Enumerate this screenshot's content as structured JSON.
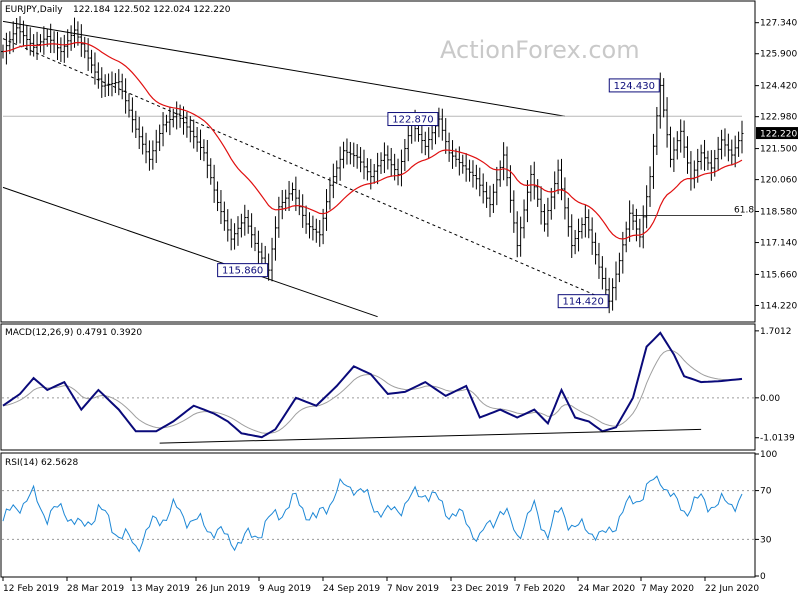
{
  "watermark": "ActionForex.com",
  "chart_data": {
    "type": "candlestick-ohlc",
    "header": {
      "symbol": "EURJPY,Daily",
      "ohlc": "122.184 122.502 122.024 122.220"
    },
    "x_ticks": [
      "12 Feb 2019",
      "28 Mar 2019",
      "13 May 2019",
      "26 Jun 2019",
      "9 Aug 2019",
      "24 Sep 2019",
      "7 Nov 2019",
      "23 Dec 2019",
      "7 Feb 2020",
      "24 Mar 2020",
      "7 May 2020",
      "22 Jun 2020"
    ],
    "main": {
      "ylim": [
        113.5,
        128.3
      ],
      "y_ticks": [
        "127.340",
        "125.900",
        "124.420",
        "122.980",
        "121.500",
        "120.060",
        "118.580",
        "117.140",
        "115.660",
        "114.220"
      ],
      "last_price": "122.220",
      "key_points": [
        {
          "date_index": 0,
          "price": 126.0
        },
        {
          "date_index": 4,
          "price": 127.1
        },
        {
          "date_index": 9,
          "price": 126.2
        },
        {
          "date_index": 13,
          "price": 126.7
        },
        {
          "date_index": 17,
          "price": 126.0
        },
        {
          "date_index": 21,
          "price": 127.0
        },
        {
          "date_index": 25,
          "price": 125.7
        },
        {
          "date_index": 29,
          "price": 124.4
        },
        {
          "date_index": 34,
          "price": 124.6
        },
        {
          "date_index": 39,
          "price": 122.4
        },
        {
          "date_index": 43,
          "price": 121.0
        },
        {
          "date_index": 47,
          "price": 122.6
        },
        {
          "date_index": 51,
          "price": 123.1
        },
        {
          "date_index": 55,
          "price": 122.3
        },
        {
          "date_index": 59,
          "price": 121.3
        },
        {
          "date_index": 63,
          "price": 119.0
        },
        {
          "date_index": 67,
          "price": 117.3
        },
        {
          "date_index": 71,
          "price": 118.3
        },
        {
          "date_index": 75,
          "price": 116.7
        },
        {
          "date_index": 78,
          "price": 115.86
        },
        {
          "date_index": 81,
          "price": 118.8
        },
        {
          "date_index": 85,
          "price": 119.6
        },
        {
          "date_index": 89,
          "price": 118.0
        },
        {
          "date_index": 93,
          "price": 117.5
        },
        {
          "date_index": 96,
          "price": 119.8
        },
        {
          "date_index": 100,
          "price": 121.4
        },
        {
          "date_index": 104,
          "price": 121.1
        },
        {
          "date_index": 108,
          "price": 120.2
        },
        {
          "date_index": 112,
          "price": 121.2
        },
        {
          "date_index": 116,
          "price": 120.3
        },
        {
          "date_index": 120,
          "price": 122.7
        },
        {
          "date_index": 124,
          "price": 121.6
        },
        {
          "date_index": 128,
          "price": 122.87
        },
        {
          "date_index": 131,
          "price": 121.3
        },
        {
          "date_index": 135,
          "price": 120.7
        },
        {
          "date_index": 139,
          "price": 120.1
        },
        {
          "date_index": 143,
          "price": 118.9
        },
        {
          "date_index": 147,
          "price": 121.2
        },
        {
          "date_index": 151,
          "price": 117.0
        },
        {
          "date_index": 155,
          "price": 120.3
        },
        {
          "date_index": 159,
          "price": 118.0
        },
        {
          "date_index": 163,
          "price": 120.5
        },
        {
          "date_index": 167,
          "price": 117.0
        },
        {
          "date_index": 171,
          "price": 118.3
        },
        {
          "date_index": 175,
          "price": 116.0
        },
        {
          "date_index": 178,
          "price": 114.42
        },
        {
          "date_index": 181,
          "price": 116.3
        },
        {
          "date_index": 184,
          "price": 118.5
        },
        {
          "date_index": 187,
          "price": 117.4
        },
        {
          "date_index": 190,
          "price": 120.2
        },
        {
          "date_index": 193,
          "price": 124.43
        },
        {
          "date_index": 196,
          "price": 121.0
        },
        {
          "date_index": 199,
          "price": 122.3
        },
        {
          "date_index": 202,
          "price": 120.1
        },
        {
          "date_index": 205,
          "price": 121.3
        },
        {
          "date_index": 208,
          "price": 120.6
        },
        {
          "date_index": 211,
          "price": 121.9
        },
        {
          "date_index": 214,
          "price": 121.2
        },
        {
          "date_index": 217,
          "price": 122.2
        }
      ],
      "lines": [
        {
          "from": [
            0,
            127.4
          ],
          "to": [
            165,
            123.0
          ],
          "style": "solid"
        },
        {
          "from": [
            0,
            119.7
          ],
          "to": [
            110,
            113.7
          ],
          "style": "solid"
        },
        {
          "from": [
            0,
            126.6
          ],
          "to": [
            178,
            114.42
          ],
          "style": "dashed"
        },
        {
          "from": [
            0,
            123.0
          ],
          "to": [
            217,
            123.0
          ],
          "style": "light"
        },
        {
          "from": [
            185,
            118.4
          ],
          "to": [
            217,
            118.4
          ],
          "style": "fib"
        }
      ],
      "callouts": [
        {
          "text": "124.430",
          "date_index": 193,
          "price": 124.43
        },
        {
          "text": "122.870",
          "date_index": 128,
          "price": 122.87
        },
        {
          "text": "115.860",
          "date_index": 78,
          "price": 115.86
        },
        {
          "text": "114.420",
          "date_index": 178,
          "price": 114.42
        }
      ],
      "fib_label": "61.8"
    },
    "macd": {
      "header": "MACD(12,26,9) 0.4791 0.3920",
      "ylim": [
        -1.3,
        1.85
      ],
      "y_ticks": [
        "1.7012",
        "0.00",
        "-1.0139"
      ],
      "last_value": "0.4791",
      "key_points": [
        {
          "date_index": 0,
          "value": -0.2
        },
        {
          "date_index": 5,
          "value": 0.1
        },
        {
          "date_index": 9,
          "value": 0.5
        },
        {
          "date_index": 13,
          "value": 0.2
        },
        {
          "date_index": 18,
          "value": 0.4
        },
        {
          "date_index": 23,
          "value": -0.3
        },
        {
          "date_index": 28,
          "value": 0.2
        },
        {
          "date_index": 34,
          "value": -0.3
        },
        {
          "date_index": 39,
          "value": -0.85
        },
        {
          "date_index": 45,
          "value": -0.85
        },
        {
          "date_index": 50,
          "value": -0.6
        },
        {
          "date_index": 56,
          "value": -0.2
        },
        {
          "date_index": 62,
          "value": -0.4
        },
        {
          "date_index": 66,
          "value": -0.6
        },
        {
          "date_index": 70,
          "value": -0.9
        },
        {
          "date_index": 76,
          "value": -1.0
        },
        {
          "date_index": 80,
          "value": -0.8
        },
        {
          "date_index": 86,
          "value": 0.0
        },
        {
          "date_index": 92,
          "value": -0.2
        },
        {
          "date_index": 98,
          "value": 0.3
        },
        {
          "date_index": 103,
          "value": 0.8
        },
        {
          "date_index": 108,
          "value": 0.6
        },
        {
          "date_index": 113,
          "value": 0.1
        },
        {
          "date_index": 118,
          "value": 0.15
        },
        {
          "date_index": 124,
          "value": 0.4
        },
        {
          "date_index": 130,
          "value": 0.05
        },
        {
          "date_index": 136,
          "value": 0.3
        },
        {
          "date_index": 140,
          "value": -0.5
        },
        {
          "date_index": 146,
          "value": -0.3
        },
        {
          "date_index": 151,
          "value": -0.5
        },
        {
          "date_index": 156,
          "value": -0.3
        },
        {
          "date_index": 160,
          "value": -0.65
        },
        {
          "date_index": 164,
          "value": 0.2
        },
        {
          "date_index": 168,
          "value": -0.5
        },
        {
          "date_index": 172,
          "value": -0.6
        },
        {
          "date_index": 176,
          "value": -0.85
        },
        {
          "date_index": 180,
          "value": -0.75
        },
        {
          "date_index": 185,
          "value": 0.0
        },
        {
          "date_index": 189,
          "value": 1.3
        },
        {
          "date_index": 193,
          "value": 1.65
        },
        {
          "date_index": 197,
          "value": 1.1
        },
        {
          "date_index": 200,
          "value": 0.55
        },
        {
          "date_index": 205,
          "value": 0.4
        },
        {
          "date_index": 210,
          "value": 0.42
        },
        {
          "date_index": 217,
          "value": 0.48
        }
      ],
      "trendline": {
        "from": [
          46,
          -1.15
        ],
        "to": [
          205,
          -0.8
        ]
      }
    },
    "rsi": {
      "header": "RSI(14) 62.5628",
      "ylim": [
        0,
        100
      ],
      "y_ticks": [
        "100",
        "70",
        "30",
        "0"
      ],
      "last_value": "62.5628",
      "key_points": [
        {
          "date_index": 0,
          "value": 45
        },
        {
          "date_index": 5,
          "value": 60
        },
        {
          "date_index": 9,
          "value": 65
        },
        {
          "date_index": 13,
          "value": 50
        },
        {
          "date_index": 18,
          "value": 55
        },
        {
          "date_index": 23,
          "value": 38
        },
        {
          "date_index": 28,
          "value": 55
        },
        {
          "date_index": 34,
          "value": 35
        },
        {
          "date_index": 39,
          "value": 25
        },
        {
          "date_index": 45,
          "value": 45
        },
        {
          "date_index": 50,
          "value": 55
        },
        {
          "date_index": 56,
          "value": 45
        },
        {
          "date_index": 62,
          "value": 38
        },
        {
          "date_index": 66,
          "value": 30
        },
        {
          "date_index": 70,
          "value": 28
        },
        {
          "date_index": 76,
          "value": 38
        },
        {
          "date_index": 80,
          "value": 50
        },
        {
          "date_index": 86,
          "value": 62
        },
        {
          "date_index": 92,
          "value": 45
        },
        {
          "date_index": 98,
          "value": 70
        },
        {
          "date_index": 103,
          "value": 75
        },
        {
          "date_index": 108,
          "value": 60
        },
        {
          "date_index": 113,
          "value": 50
        },
        {
          "date_index": 118,
          "value": 60
        },
        {
          "date_index": 124,
          "value": 70
        },
        {
          "date_index": 130,
          "value": 55
        },
        {
          "date_index": 136,
          "value": 45
        },
        {
          "date_index": 140,
          "value": 30
        },
        {
          "date_index": 146,
          "value": 55
        },
        {
          "date_index": 151,
          "value": 35
        },
        {
          "date_index": 156,
          "value": 55
        },
        {
          "date_index": 160,
          "value": 35
        },
        {
          "date_index": 164,
          "value": 55
        },
        {
          "date_index": 168,
          "value": 38
        },
        {
          "date_index": 172,
          "value": 40
        },
        {
          "date_index": 176,
          "value": 30
        },
        {
          "date_index": 180,
          "value": 45
        },
        {
          "date_index": 185,
          "value": 62
        },
        {
          "date_index": 189,
          "value": 70
        },
        {
          "date_index": 193,
          "value": 82
        },
        {
          "date_index": 197,
          "value": 60
        },
        {
          "date_index": 200,
          "value": 55
        },
        {
          "date_index": 205,
          "value": 62
        },
        {
          "date_index": 210,
          "value": 58
        },
        {
          "date_index": 217,
          "value": 63
        }
      ]
    }
  }
}
